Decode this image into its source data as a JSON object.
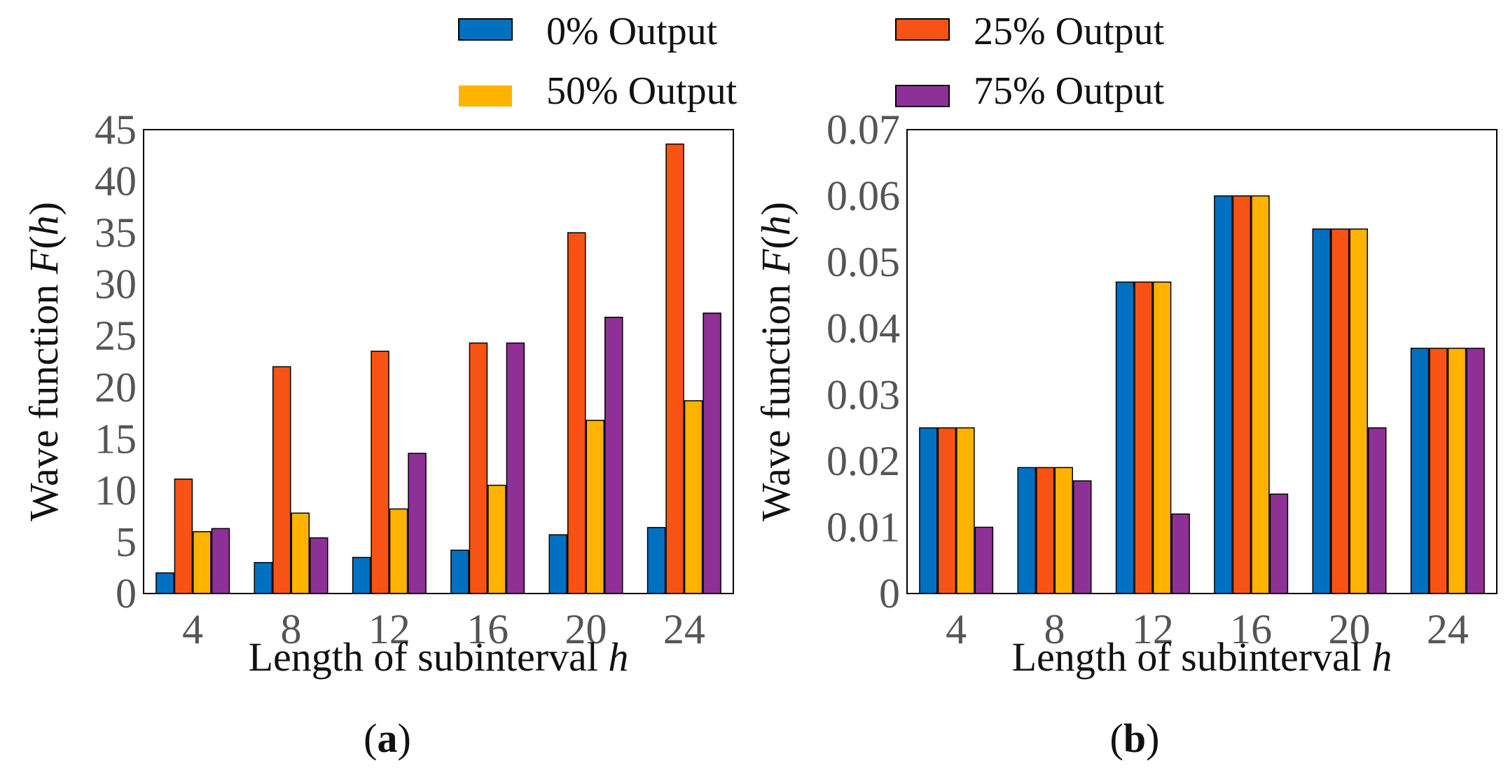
{
  "legend": [
    {
      "label": "0% Output",
      "color": "#0070C0"
    },
    {
      "label": "25% Output",
      "color": "#F65314"
    },
    {
      "label": "50% Output",
      "color": "#FFB300"
    },
    {
      "label": "75% Output",
      "color": "#8E3197"
    }
  ],
  "chart_data": [
    {
      "type": "bar",
      "panel_label": "a",
      "categories": [
        "4",
        "8",
        "12",
        "16",
        "20",
        "24"
      ],
      "xlabel_prefix": "Length of subinterval ",
      "xlabel_var": "h",
      "ylabel_prefix": "Wave function ",
      "ylabel_var": "F",
      "ylabel_open": "(",
      "ylabel_arg": "h",
      "ylabel_close": ")",
      "ylim": [
        0,
        45
      ],
      "yticks": [
        "0",
        "5",
        "10",
        "15",
        "20",
        "25",
        "30",
        "35",
        "40",
        "45"
      ],
      "series": [
        {
          "name": "0% Output",
          "values": [
            2.0,
            3.0,
            3.5,
            4.2,
            5.7,
            6.4
          ]
        },
        {
          "name": "25% Output",
          "values": [
            11.1,
            22.0,
            23.5,
            24.3,
            35.0,
            43.6
          ]
        },
        {
          "name": "50% Output",
          "values": [
            6.0,
            7.8,
            8.2,
            10.5,
            16.8,
            18.7
          ]
        },
        {
          "name": "75% Output",
          "values": [
            6.3,
            5.4,
            13.6,
            24.3,
            26.8,
            27.2
          ]
        }
      ]
    },
    {
      "type": "bar",
      "panel_label": "b",
      "categories": [
        "4",
        "8",
        "12",
        "16",
        "20",
        "24"
      ],
      "xlabel_prefix": "Length of subinterval ",
      "xlabel_var": "h",
      "ylabel_prefix": "Wave function ",
      "ylabel_var": "F",
      "ylabel_open": "(",
      "ylabel_arg": "h",
      "ylabel_close": ")",
      "ylim": [
        0,
        0.07
      ],
      "yticks": [
        "0",
        "0.01",
        "0.02",
        "0.03",
        "0.04",
        "0.05",
        "0.06",
        "0.07"
      ],
      "series": [
        {
          "name": "0% Output",
          "values": [
            0.025,
            0.019,
            0.047,
            0.06,
            0.055,
            0.037
          ]
        },
        {
          "name": "25% Output",
          "values": [
            0.025,
            0.019,
            0.047,
            0.06,
            0.055,
            0.037
          ]
        },
        {
          "name": "50% Output",
          "values": [
            0.025,
            0.019,
            0.047,
            0.06,
            0.055,
            0.037
          ]
        },
        {
          "name": "75% Output",
          "values": [
            0.01,
            0.017,
            0.012,
            0.015,
            0.025,
            0.037
          ]
        }
      ]
    }
  ]
}
